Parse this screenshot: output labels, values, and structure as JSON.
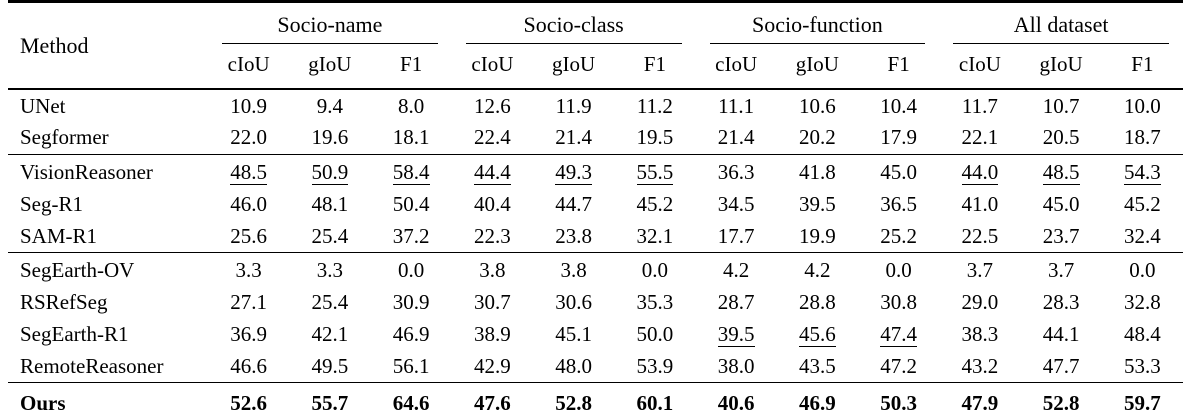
{
  "table": {
    "method_header": "Method",
    "groups": [
      {
        "label": "Socio-name",
        "subcols": [
          "cIoU",
          "gIoU",
          "F1"
        ]
      },
      {
        "label": "Socio-class",
        "subcols": [
          "cIoU",
          "gIoU",
          "F1"
        ]
      },
      {
        "label": "Socio-function",
        "subcols": [
          "cIoU",
          "gIoU",
          "F1"
        ]
      },
      {
        "label": "All dataset",
        "subcols": [
          "cIoU",
          "gIoU",
          "F1"
        ]
      }
    ],
    "sections": [
      {
        "rows": [
          {
            "method": "UNet",
            "values": [
              "10.9",
              "9.4",
              "8.0",
              "12.6",
              "11.9",
              "11.2",
              "11.1",
              "10.6",
              "10.4",
              "11.7",
              "10.7",
              "10.0"
            ],
            "underline": [],
            "bold": false
          },
          {
            "method": "Segformer",
            "values": [
              "22.0",
              "19.6",
              "18.1",
              "22.4",
              "21.4",
              "19.5",
              "21.4",
              "20.2",
              "17.9",
              "22.1",
              "20.5",
              "18.7"
            ],
            "underline": [],
            "bold": false
          }
        ]
      },
      {
        "rows": [
          {
            "method": "VisionReasoner",
            "values": [
              "48.5",
              "50.9",
              "58.4",
              "44.4",
              "49.3",
              "55.5",
              "36.3",
              "41.8",
              "45.0",
              "44.0",
              "48.5",
              "54.3"
            ],
            "underline": [
              0,
              1,
              2,
              3,
              4,
              5,
              9,
              10,
              11
            ],
            "bold": false
          },
          {
            "method": "Seg-R1",
            "values": [
              "46.0",
              "48.1",
              "50.4",
              "40.4",
              "44.7",
              "45.2",
              "34.5",
              "39.5",
              "36.5",
              "41.0",
              "45.0",
              "45.2"
            ],
            "underline": [],
            "bold": false
          },
          {
            "method": "SAM-R1",
            "values": [
              "25.6",
              "25.4",
              "37.2",
              "22.3",
              "23.8",
              "32.1",
              "17.7",
              "19.9",
              "25.2",
              "22.5",
              "23.7",
              "32.4"
            ],
            "underline": [],
            "bold": false
          }
        ]
      },
      {
        "rows": [
          {
            "method": "SegEarth-OV",
            "values": [
              "3.3",
              "3.3",
              "0.0",
              "3.8",
              "3.8",
              "0.0",
              "4.2",
              "4.2",
              "0.0",
              "3.7",
              "3.7",
              "0.0"
            ],
            "underline": [],
            "bold": false
          },
          {
            "method": "RSRefSeg",
            "values": [
              "27.1",
              "25.4",
              "30.9",
              "30.7",
              "30.6",
              "35.3",
              "28.7",
              "28.8",
              "30.8",
              "29.0",
              "28.3",
              "32.8"
            ],
            "underline": [],
            "bold": false
          },
          {
            "method": "SegEarth-R1",
            "values": [
              "36.9",
              "42.1",
              "46.9",
              "38.9",
              "45.1",
              "50.0",
              "39.5",
              "45.6",
              "47.4",
              "38.3",
              "44.1",
              "48.4"
            ],
            "underline": [
              6,
              7,
              8
            ],
            "bold": false
          },
          {
            "method": "RemoteReasoner",
            "values": [
              "46.6",
              "49.5",
              "56.1",
              "42.9",
              "48.0",
              "53.9",
              "38.0",
              "43.5",
              "47.2",
              "43.2",
              "47.7",
              "53.3"
            ],
            "underline": [],
            "bold": false
          }
        ]
      },
      {
        "rows": [
          {
            "method": "Ours",
            "values": [
              "52.6",
              "55.7",
              "64.6",
              "47.6",
              "52.8",
              "60.1",
              "40.6",
              "46.9",
              "50.3",
              "47.9",
              "52.8",
              "59.7"
            ],
            "underline": [],
            "bold": true
          }
        ]
      }
    ],
    "colors": {
      "text": "#000000",
      "background": "#ffffff",
      "rule": "#000000"
    }
  }
}
